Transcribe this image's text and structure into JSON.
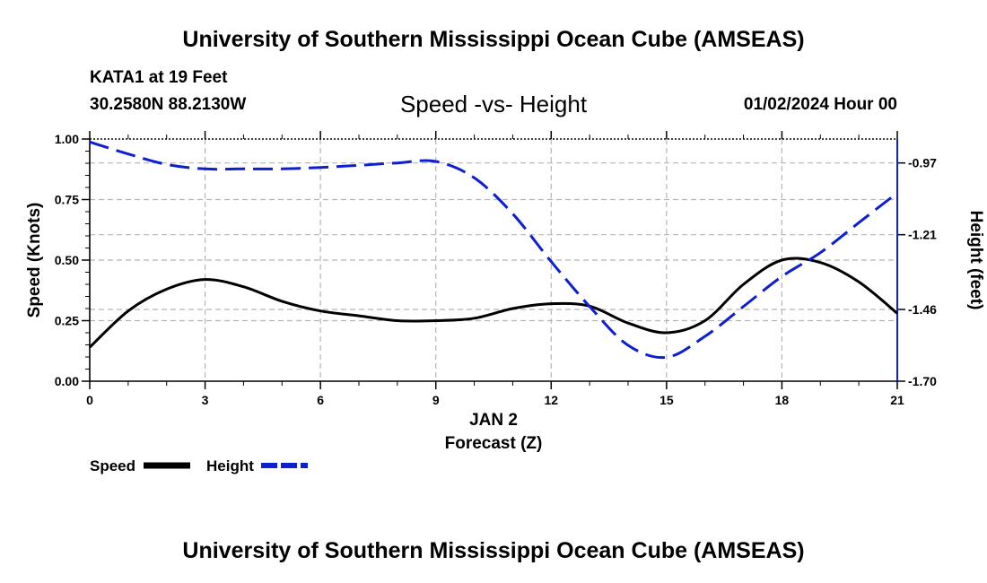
{
  "header": {
    "title": "University of Southern Mississippi Ocean Cube (AMSEAS)",
    "station": "KATA1 at 19 Feet",
    "coords": "30.2580N  88.2130W",
    "datetime": "01/02/2024 Hour 00"
  },
  "footer": {
    "title": "University of Southern Mississippi Ocean Cube (AMSEAS)"
  },
  "chart_data": {
    "type": "line",
    "title": "Speed -vs- Height",
    "xlabel": "Forecast (Z)",
    "xsublabel": "JAN 2",
    "ylabel": "Speed (Knots)",
    "y2label": "Height (feet)",
    "xlim": [
      0,
      21
    ],
    "xticks": [
      0,
      3,
      6,
      9,
      12,
      15,
      18,
      21
    ],
    "ylim": [
      0,
      1
    ],
    "yticks": [
      "0.00",
      "0.25",
      "0.50",
      "0.75",
      "1.00"
    ],
    "y2lim": [
      -1.7,
      -0.89
    ],
    "y2ticks": [
      "-0.97",
      "-1.21",
      "-1.46",
      "-1.70"
    ],
    "y2tick_values": [
      -0.97,
      -1.21,
      -1.46,
      -1.7
    ],
    "grid": true,
    "legend": "bottom-left",
    "series": [
      {
        "name": "Speed",
        "axis": "left",
        "color": "#000000",
        "dash": "solid",
        "x": [
          0,
          1,
          2,
          3,
          4,
          5,
          6,
          7,
          8,
          9,
          10,
          11,
          12,
          13,
          14,
          15,
          16,
          17,
          18,
          19,
          20,
          21
        ],
        "values": [
          0.14,
          0.29,
          0.38,
          0.42,
          0.39,
          0.33,
          0.29,
          0.27,
          0.25,
          0.25,
          0.26,
          0.3,
          0.32,
          0.31,
          0.24,
          0.2,
          0.25,
          0.4,
          0.5,
          0.49,
          0.41,
          0.28
        ]
      },
      {
        "name": "Height",
        "axis": "right",
        "color": "#0d1fd0",
        "dash": "dashed",
        "x": [
          0,
          1,
          2,
          3,
          4,
          5,
          6,
          7,
          8,
          9,
          10,
          11,
          12,
          13,
          14,
          15,
          16,
          17,
          18,
          19,
          20,
          21
        ],
        "values": [
          -0.9,
          -0.94,
          -0.975,
          -0.99,
          -0.99,
          -0.99,
          -0.985,
          -0.978,
          -0.97,
          -0.965,
          -1.02,
          -1.14,
          -1.3,
          -1.45,
          -1.58,
          -1.62,
          -1.55,
          -1.45,
          -1.35,
          -1.27,
          -1.17,
          -1.07
        ]
      }
    ]
  },
  "colors": {
    "speed": "#000000",
    "height": "#0d1fd0",
    "grid": "#b5b5b5"
  }
}
